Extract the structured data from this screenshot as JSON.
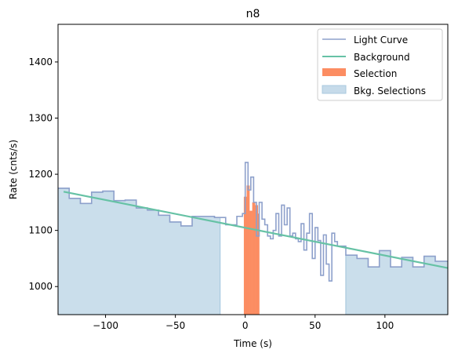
{
  "chart_data": {
    "type": "line",
    "title": "n8",
    "xlabel": "Time (s)",
    "ylabel": "Rate (cnts/s)",
    "xlim": [
      -134,
      145
    ],
    "ylim": [
      950,
      1467
    ],
    "x_ticks": [
      -100,
      -50,
      0,
      50,
      100
    ],
    "y_ticks": [
      1000,
      1100,
      1200,
      1300,
      1400
    ],
    "x_tick_labels": [
      "−100",
      "−50",
      "0",
      "50",
      "100"
    ],
    "y_tick_labels": [
      "1000",
      "1100",
      "1200",
      "1300",
      "1400"
    ],
    "grid": false,
    "legend": {
      "placement": "top-right",
      "entries": [
        {
          "label": "Light Curve",
          "color": "#8da0cb",
          "kind": "line"
        },
        {
          "label": "Background",
          "color": "#66c2a5",
          "kind": "line"
        },
        {
          "label": "Selection",
          "color": "#fc8d62",
          "kind": "patch"
        },
        {
          "label": "Bkg. Selections",
          "color": "#c6dbea",
          "kind": "patch"
        }
      ]
    },
    "colors": {
      "light_curve": "#8da0cb",
      "background": "#66c2a5",
      "selection": "#fc8d62",
      "bkg_selection_fill": "#cadeeb",
      "bkg_selection_edge": "#a9c9df"
    },
    "background_fit": {
      "x": [
        -130,
        145
      ],
      "y": [
        1169,
        1033
      ]
    },
    "bkg_selections": [
      [
        -134,
        -18
      ],
      [
        72,
        145
      ]
    ],
    "light_curve": {
      "edges": [
        -134,
        -126,
        -118,
        -110,
        -102,
        -94,
        -86,
        -78,
        -70,
        -62,
        -54,
        -46,
        -38,
        -30,
        -22,
        -14,
        -6,
        -2,
        0,
        2,
        4,
        6,
        8,
        10,
        12,
        14,
        16,
        18,
        20,
        22,
        24,
        26,
        28,
        30,
        32,
        34,
        36,
        38,
        40,
        42,
        44,
        46,
        48,
        50,
        52,
        54,
        56,
        58,
        60,
        62,
        64,
        66,
        72,
        80,
        88,
        96,
        104,
        112,
        120,
        128,
        136,
        145
      ],
      "values": [
        1175,
        1157,
        1148,
        1168,
        1170,
        1153,
        1154,
        1140,
        1136,
        1127,
        1115,
        1108,
        1125,
        1125,
        1123,
        1110,
        1125,
        1130,
        1221,
        1172,
        1195,
        1150,
        1090,
        1150,
        1120,
        1110,
        1090,
        1085,
        1100,
        1130,
        1090,
        1145,
        1110,
        1140,
        1090,
        1095,
        1085,
        1080,
        1112,
        1065,
        1095,
        1130,
        1050,
        1105,
        1082,
        1020,
        1092,
        1040,
        1010,
        1095,
        1080,
        1072,
        1056,
        1050,
        1035,
        1064,
        1035,
        1052,
        1035,
        1054,
        1045
      ]
    },
    "selection": {
      "edges": [
        -1,
        1,
        3,
        5,
        7,
        9,
        10
      ],
      "values": [
        1160,
        1180,
        1135,
        1150,
        1145,
        1130
      ]
    }
  }
}
